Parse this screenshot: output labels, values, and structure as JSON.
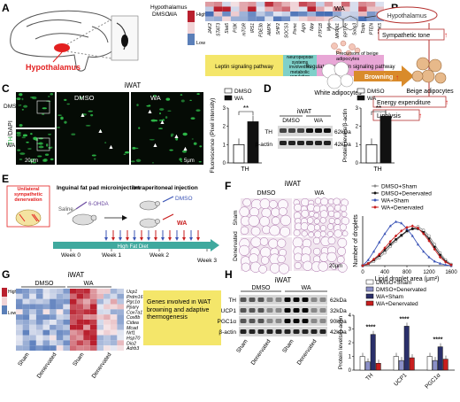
{
  "panels": {
    "A": {
      "letter": "A",
      "region": "Hypothalamus",
      "heatmap_header": "Hypothalamus",
      "groups": [
        "DMSO",
        "WA"
      ],
      "legend_high": "High",
      "legend_low": "Low",
      "genes": [
        "JAK2",
        "STAT3",
        "Stat5",
        "PI3K",
        "mTOR",
        "IRS1",
        "PDE3b",
        "AMPK",
        "SHP2",
        "SOCS3",
        "Pomc",
        "Agrp",
        "Npy",
        "PTP1B",
        "Myc",
        "MKRN1",
        "RPTPe",
        "Socs3",
        "Tcptp",
        "PTEN",
        "CDK5"
      ],
      "categories": [
        {
          "label": "Leptin signaling pathway",
          "color": "#f4e66a"
        },
        {
          "label": "Neuropeptide systems involved in metabolic regulation",
          "color": "#7fd0c9"
        },
        {
          "label": "Regulators of leptin signaling pathway",
          "color": "#e8a7d6"
        }
      ]
    },
    "B": {
      "letter": "B",
      "wa": "WA",
      "hypothalamus": "Hypothalamus",
      "sympathetic": "Sympathetic tone",
      "precursors": "Precursors of beige adipocytes",
      "white": "White adipocytes",
      "browning": "Browning",
      "beige": "Beige adipocytes",
      "energy": "Energy expenditure",
      "lipolysis": "Lipolysis"
    },
    "C": {
      "letter": "C",
      "title": "iWAT",
      "stain_th": "TH",
      "stain_dapi": "/DAPI",
      "cond1": "DMSO",
      "cond2": "WA",
      "scale1": "20μm",
      "scale2": "5μm",
      "legend": [
        "DMSO",
        "WA"
      ],
      "ylabel": "Fluorescence (Pixel intensity)",
      "xlabel": "TH",
      "sig": "**",
      "yticks": [
        "0",
        "1",
        "2",
        "3"
      ]
    },
    "D": {
      "letter": "D",
      "title": "iWAT",
      "cond1": "DMSO",
      "cond2": "WA",
      "band1": "TH",
      "band2": "β-actin",
      "kda1": "62kDa",
      "kda2": "42kDa",
      "legend": [
        "DMSO",
        "WA"
      ],
      "ylabel": "Protein levels/β-actin",
      "xlabel": "TH",
      "sig": "**",
      "yticks": [
        "0",
        "1",
        "2",
        "3"
      ]
    },
    "E": {
      "letter": "E",
      "denervation": "Unilateral sympathetic denervation",
      "inguinal": "Inguinal fat pad microinjection",
      "saline": "Saline",
      "odda": "6-OHDA",
      "intraperitoneal": "Intraperitoneal injection",
      "dmso": "DMSO",
      "wa": "WA",
      "hfd": "High Fat Diet",
      "weeks": [
        "Week 0",
        "Week 1",
        "Week 2",
        "Week 3"
      ]
    },
    "F": {
      "letter": "F",
      "title": "iWAT",
      "cond1": "DMSO",
      "cond2": "WA",
      "row1": "Sham",
      "row2": "Denervated",
      "scale": "20μm",
      "legend": [
        "DMSO+Sham",
        "DMSO+Denervated",
        "WA+Sham",
        "WA+Denervated"
      ],
      "ylabel": "Number of droplets",
      "xlabel": "Lipid droplet area (μm²)",
      "xticks": [
        "0",
        "400",
        "800",
        "1200",
        "1600"
      ]
    },
    "G": {
      "letter": "G",
      "title": "iWAT",
      "cond1": "DMSO",
      "cond2": "WA",
      "legend_high": "High",
      "legend_low": "Low",
      "genes": [
        "Ucp1",
        "Prdm16",
        "Pgc1α",
        "Pparγ",
        "Cox7a1",
        "Cox8b",
        "Cidea",
        "Mcad",
        "Nrf1",
        "Hsp70",
        "Dio2",
        "Adrb3"
      ],
      "box": "Genes involved in WAT browning and adaptive thermogenesis",
      "xlabels": [
        "Sham",
        "Denervated",
        "Sham",
        "Denervated"
      ]
    },
    "H": {
      "letter": "H",
      "title": "iWAT",
      "cond1": "DMSO",
      "cond2": "WA",
      "bands": [
        "TH",
        "UCP1",
        "PGC1α",
        "β-actin"
      ],
      "kda": [
        "62kDa",
        "32kDa",
        "90kDa",
        "42kDa"
      ],
      "xlabels": [
        "Sham",
        "Denervated",
        "Sham",
        "Denervated"
      ],
      "legend": [
        "DMSO+Sham",
        "DMSO+Denervated",
        "WA+Sham",
        "WA+Denervated"
      ],
      "ylabel": "Protein levels/β-actin",
      "sig": "****",
      "yticks": [
        "0",
        "1",
        "2",
        "3",
        "4"
      ]
    }
  },
  "chart_data": [
    {
      "type": "bar",
      "panel": "C",
      "categories": [
        "TH"
      ],
      "series": [
        {
          "name": "DMSO",
          "values": [
            1.0
          ]
        },
        {
          "name": "WA",
          "values": [
            2.25
          ]
        }
      ],
      "ylabel": "Fluorescence (Pixel intensity)",
      "ylim": [
        0,
        3
      ]
    },
    {
      "type": "bar",
      "panel": "D",
      "categories": [
        "TH"
      ],
      "series": [
        {
          "name": "DMSO",
          "values": [
            1.0
          ]
        },
        {
          "name": "WA",
          "values": [
            2.55
          ]
        }
      ],
      "ylabel": "Protein levels/β-actin",
      "ylim": [
        0,
        3
      ]
    },
    {
      "type": "line",
      "panel": "F",
      "x": [
        0,
        100,
        200,
        300,
        400,
        500,
        600,
        700,
        800,
        900,
        1000,
        1100,
        1200,
        1300,
        1400,
        1500,
        1600
      ],
      "series": [
        {
          "name": "DMSO+Sham",
          "values": [
            0,
            2,
            6,
            11,
            18,
            27,
            35,
            42,
            48,
            52,
            55,
            50,
            42,
            30,
            18,
            8,
            2
          ]
        },
        {
          "name": "DMSO+Denervated",
          "values": [
            0,
            3,
            8,
            14,
            22,
            30,
            37,
            43,
            49,
            52,
            52,
            47,
            38,
            26,
            15,
            6,
            1
          ]
        },
        {
          "name": "WA+Sham",
          "values": [
            0,
            8,
            20,
            33,
            45,
            56,
            62,
            60,
            52,
            42,
            30,
            20,
            12,
            6,
            3,
            1,
            0
          ]
        },
        {
          "name": "WA+Denervated",
          "values": [
            0,
            3,
            9,
            16,
            25,
            34,
            42,
            49,
            54,
            56,
            53,
            45,
            35,
            23,
            12,
            5,
            1
          ]
        }
      ],
      "xlabel": "Lipid droplet area (μm²)",
      "ylabel": "Number of droplets",
      "xlim": [
        0,
        1600
      ],
      "ylim": [
        0,
        70
      ]
    },
    {
      "type": "bar",
      "panel": "H",
      "categories": [
        "TH",
        "UCP1",
        "PGC1α"
      ],
      "series": [
        {
          "name": "DMSO+Sham",
          "values": [
            1.0,
            1.0,
            1.0
          ]
        },
        {
          "name": "DMSO+Denervated",
          "values": [
            0.6,
            0.7,
            0.7
          ]
        },
        {
          "name": "WA+Sham",
          "values": [
            2.6,
            3.2,
            1.7
          ]
        },
        {
          "name": "WA+Denervated",
          "values": [
            0.5,
            0.9,
            0.8
          ]
        }
      ],
      "ylabel": "Protein levels/β-actin",
      "ylim": [
        0,
        4
      ]
    }
  ]
}
